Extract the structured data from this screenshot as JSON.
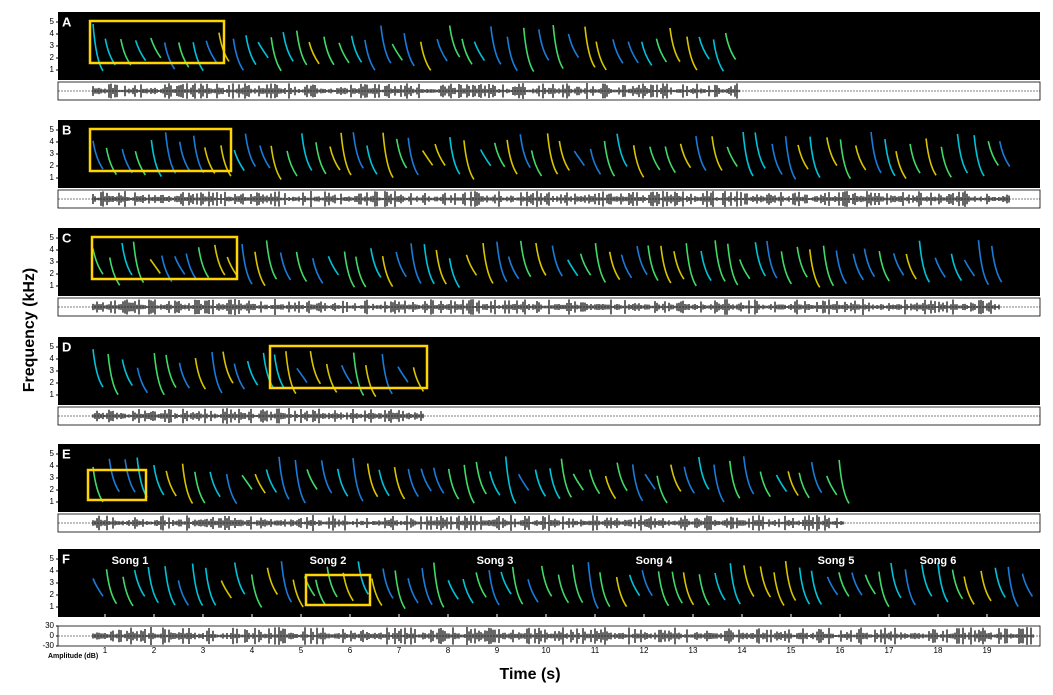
{
  "figure": {
    "y_axis_title": "Frequency (kHz)",
    "x_axis_title": "Time (s)",
    "panels": [
      {
        "label": "A",
        "yticks": [
          1,
          2,
          3,
          4,
          5
        ]
      },
      {
        "label": "B",
        "yticks": [
          1,
          2,
          3,
          4,
          5
        ]
      },
      {
        "label": "C",
        "yticks": [
          1,
          2,
          3,
          4,
          5
        ]
      },
      {
        "label": "D",
        "yticks": [
          1,
          2,
          3,
          4,
          5
        ]
      },
      {
        "label": "E",
        "yticks": [
          1,
          2,
          3,
          4,
          5
        ]
      },
      {
        "label": "F",
        "yticks": [
          1,
          2,
          3,
          4,
          5
        ],
        "songs": [
          "Song 1",
          "Song 2",
          "Song 3",
          "Song 4",
          "Song 5",
          "Song 6"
        ],
        "amplitude_ticks": [
          30,
          0,
          -30
        ],
        "amplitude_label": "Amplitude (dB)"
      }
    ],
    "xticks": [
      1,
      2,
      3,
      4,
      5,
      6,
      7,
      8,
      9,
      10,
      11,
      12,
      13,
      14,
      15,
      16,
      17,
      18,
      19
    ]
  }
}
